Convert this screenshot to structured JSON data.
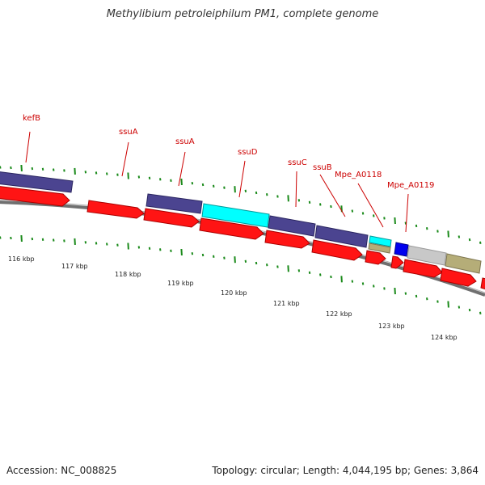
{
  "title": "Methylibium petroleiphilum PM1, complete genome",
  "accession": "Accession: NC_008825",
  "topology": "Topology: circular; Length: 4,044,195 bp; Genes: 3,864",
  "colors": {
    "cds_forward": "#ff1414",
    "gene": "#4b4490",
    "rrna": "#00ffff",
    "trna": "#b5ad78",
    "misc": "#c8c8c8",
    "other": "#0000ee",
    "label": "#cc0000",
    "tick": "#1a8a1a",
    "backbone": "#777777"
  },
  "scale": {
    "ticks": [
      {
        "label": "116 kbp"
      },
      {
        "label": "117 kbp"
      },
      {
        "label": "118 kbp"
      },
      {
        "label": "119 kbp"
      },
      {
        "label": "120 kbp"
      },
      {
        "label": "121 kbp"
      },
      {
        "label": "122 kbp"
      },
      {
        "label": "123 kbp"
      },
      {
        "label": "124 kbp"
      }
    ]
  },
  "features": {
    "labels": [
      {
        "name": "kefB"
      },
      {
        "name": "ssuA"
      },
      {
        "name": "ssuA"
      },
      {
        "name": "ssuD"
      },
      {
        "name": "ssuC"
      },
      {
        "name": "ssuB"
      },
      {
        "name": "Mpe_A0118"
      },
      {
        "name": "Mpe_A0119"
      }
    ]
  }
}
